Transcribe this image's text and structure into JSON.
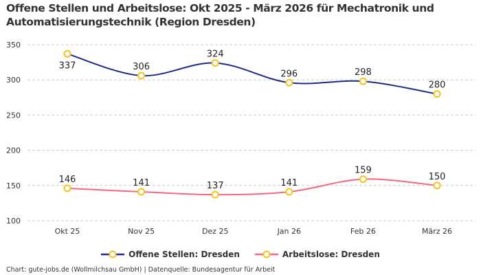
{
  "chart_data": {
    "type": "line",
    "title": "Offene Stellen und Arbeitslose: Okt 2025 - März 2026 für Mechatronik und Automatisierungstechnik (Region Dresden)",
    "categories": [
      "Okt 25",
      "Nov 25",
      "Dez 25",
      "Jan 26",
      "Feb 26",
      "März 26"
    ],
    "series": [
      {
        "name": "Offene Stellen: Dresden",
        "values": [
          337,
          306,
          324,
          296,
          298,
          280
        ],
        "color": "#1b2a8a"
      },
      {
        "name": "Arbeitslose: Dresden",
        "values": [
          146,
          141,
          137,
          141,
          159,
          150
        ],
        "color": "#f4677f"
      }
    ],
    "marker_color": "#f7c31a",
    "yticks": [
      100,
      150,
      200,
      250,
      300,
      350
    ],
    "ylim": [
      100,
      350
    ],
    "xlabel": "",
    "ylabel": "",
    "grid": true,
    "legend": "bottom-center"
  },
  "footer": "Chart: gute-jobs.de (Wollmilchsau GmbH) | Datenquelle: Bundesagentur für Arbeit"
}
